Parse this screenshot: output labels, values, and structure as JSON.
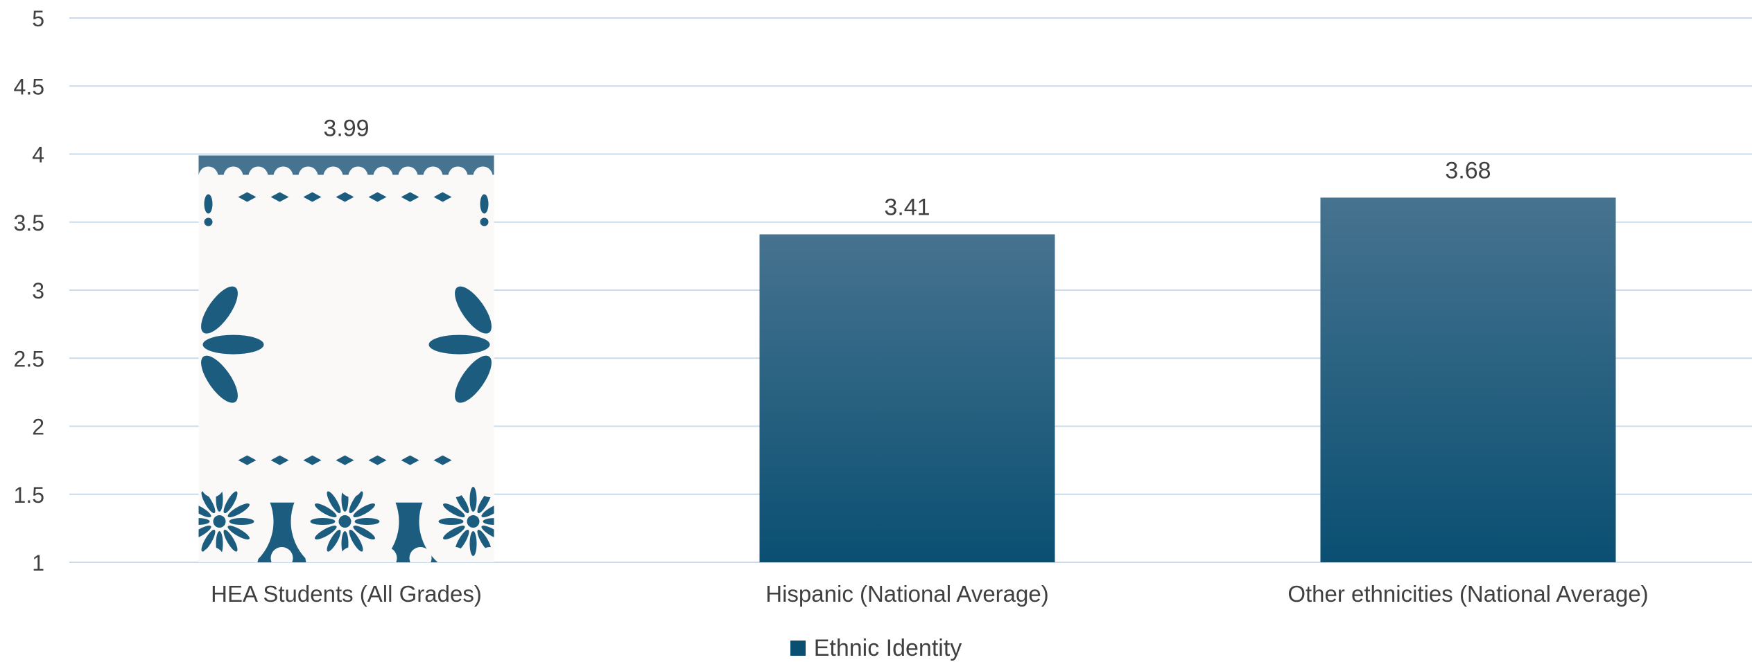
{
  "chart_data": {
    "type": "bar",
    "categories": [
      "HEA Students (All Grades)",
      "Hispanic (National Average)",
      "Other ethnicities (National Average)"
    ],
    "series": [
      {
        "name": "Ethnic Identity",
        "values": [
          3.99,
          3.41,
          3.68
        ]
      }
    ],
    "data_labels": [
      "3.99",
      "3.41",
      "3.68"
    ],
    "y_ticks": [
      "5",
      "4.5",
      "4",
      "3.5",
      "3",
      "2.5",
      "2",
      "1.5",
      "1"
    ],
    "ylim": [
      1,
      5
    ],
    "grid": true,
    "legend_position": "bottom",
    "colors": {
      "bar_top": "#46738f",
      "bar_bottom": "#0a4f72",
      "pattern_fill": "#1b5c7f",
      "pattern_paper": "#fbf9f8",
      "gridline": "#c9dbea",
      "text": "#404040"
    },
    "patterned_bar_index": 0
  }
}
